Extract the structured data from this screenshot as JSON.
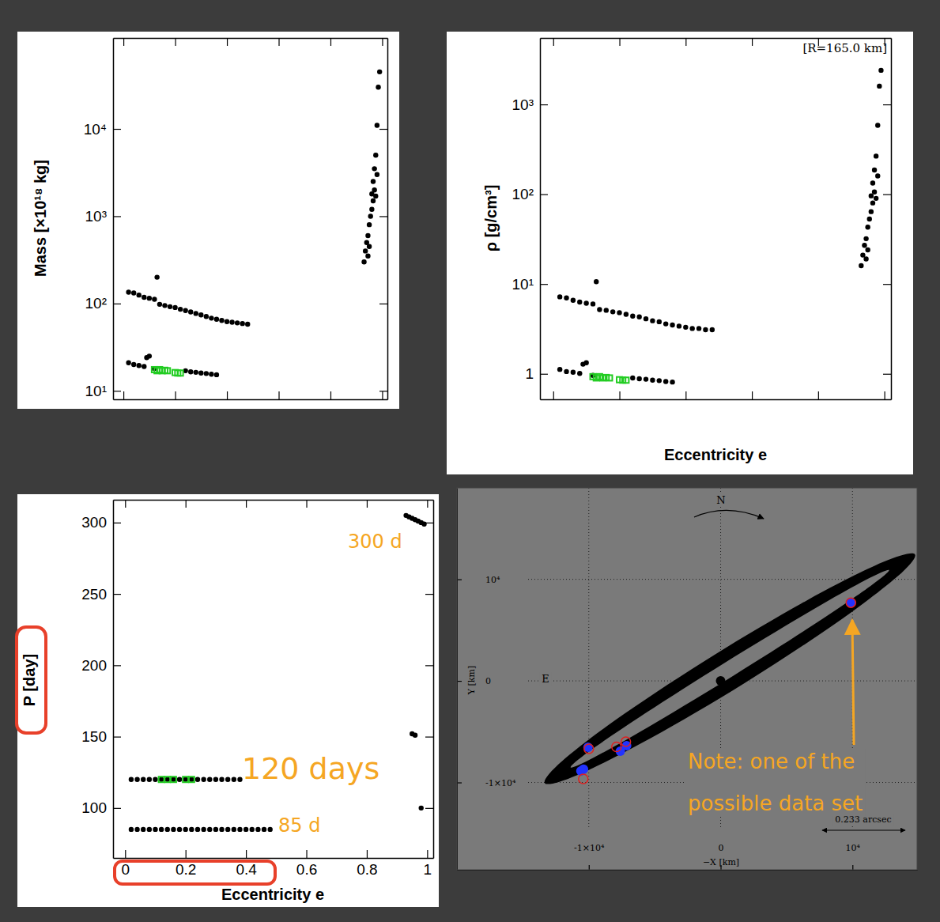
{
  "chart_data": [
    {
      "type": "scatter",
      "ylabel": "Mass [×10¹⁸ kg]",
      "log": "y",
      "tick_labels": "y",
      "xlim": [
        -0.04,
        1.02
      ],
      "xticks": [
        0,
        0.2,
        0.4,
        0.6,
        0.8,
        1
      ],
      "ylim": [
        8,
        110000
      ],
      "yticks": [
        {
          "value": 10,
          "label": "10¹"
        },
        {
          "value": 100,
          "label": "10²"
        },
        {
          "value": 1000,
          "label": "10³"
        },
        {
          "value": 10000,
          "label": "10⁴"
        }
      ],
      "series": [
        {
          "color": "#000000",
          "marker": "circle",
          "x": [
            0.02,
            0.04,
            0.06,
            0.08,
            0.1,
            0.12,
            0.13,
            0.14,
            0.16,
            0.18,
            0.2,
            0.22,
            0.24,
            0.26,
            0.28,
            0.3,
            0.32,
            0.34,
            0.36,
            0.38,
            0.4,
            0.42,
            0.44,
            0.46,
            0.48,
            0.02,
            0.04,
            0.06,
            0.08,
            0.09,
            0.1,
            0.12,
            0.24,
            0.26,
            0.28,
            0.3,
            0.32,
            0.34,
            0.36,
            0.93,
            0.935,
            0.94,
            0.945,
            0.945,
            0.95,
            0.95,
            0.955,
            0.96,
            0.96,
            0.965,
            0.965,
            0.97,
            0.97,
            0.975,
            0.975,
            0.98,
            0.98,
            0.985,
            0.99
          ],
          "values": [
            135,
            132,
            125,
            118,
            115,
            112,
            200,
            98,
            95,
            92,
            90,
            86,
            83,
            80,
            77,
            74,
            71,
            68,
            66,
            64,
            62,
            61,
            60,
            59,
            58,
            21,
            20,
            19.5,
            19,
            24,
            25,
            18,
            17,
            16.5,
            16.3,
            16,
            15.8,
            15.5,
            15.3,
            300,
            400,
            500,
            600,
            350,
            450,
            800,
            1000,
            1200,
            1800,
            1500,
            2500,
            2000,
            3500,
            1700,
            5000,
            3000,
            11000,
            30000,
            45000
          ]
        },
        {
          "color": "#22cc22",
          "marker": "square",
          "x": [
            0.12,
            0.13,
            0.14,
            0.15,
            0.16,
            0.17,
            0.2,
            0.21,
            0.22
          ],
          "values": [
            17.5,
            17,
            17.5,
            17,
            17.2,
            17,
            16.2,
            16,
            16
          ]
        }
      ]
    },
    {
      "type": "scatter",
      "ylabel": "ρ [g/cm³]",
      "xlabel": "Eccentricity e",
      "log": "y",
      "tick_labels": "y",
      "annotations": [
        "[R=165.0 km]"
      ],
      "xlim": [
        -0.04,
        1.02
      ],
      "xticks": [
        0,
        0.2,
        0.4,
        0.6,
        0.8,
        1
      ],
      "ylim": [
        0.52,
        5500
      ],
      "yticks": [
        1,
        {
          "value": 10,
          "label": "10¹"
        },
        {
          "value": 100,
          "label": "10²"
        },
        {
          "value": 1000,
          "label": "10³"
        }
      ],
      "series": [
        {
          "color": "#000000",
          "marker": "circle",
          "x": [
            0.02,
            0.04,
            0.06,
            0.08,
            0.1,
            0.12,
            0.13,
            0.14,
            0.16,
            0.18,
            0.2,
            0.22,
            0.24,
            0.26,
            0.28,
            0.3,
            0.32,
            0.34,
            0.36,
            0.38,
            0.4,
            0.42,
            0.44,
            0.46,
            0.48,
            0.02,
            0.04,
            0.06,
            0.08,
            0.09,
            0.1,
            0.12,
            0.24,
            0.26,
            0.28,
            0.3,
            0.32,
            0.34,
            0.36,
            0.93,
            0.935,
            0.94,
            0.945,
            0.945,
            0.95,
            0.95,
            0.955,
            0.96,
            0.96,
            0.965,
            0.965,
            0.97,
            0.97,
            0.975,
            0.975,
            0.98,
            0.98,
            0.985,
            0.99
          ],
          "values": [
            7.2,
            7.0,
            6.6,
            6.3,
            6.1,
            6.0,
            10.6,
            5.2,
            5.1,
            4.9,
            4.8,
            4.6,
            4.4,
            4.3,
            4.1,
            3.9,
            3.8,
            3.6,
            3.5,
            3.4,
            3.3,
            3.2,
            3.2,
            3.1,
            3.1,
            1.12,
            1.06,
            1.04,
            1.01,
            1.28,
            1.33,
            0.96,
            0.9,
            0.88,
            0.87,
            0.85,
            0.84,
            0.82,
            0.81,
            16,
            21,
            27,
            32,
            19,
            24,
            43,
            53,
            64,
            96,
            80,
            133,
            106,
            186,
            90,
            266,
            160,
            585,
            1600,
            2400
          ]
        },
        {
          "color": "#22cc22",
          "marker": "square",
          "x": [
            0.12,
            0.13,
            0.14,
            0.15,
            0.16,
            0.17,
            0.2,
            0.21,
            0.22
          ],
          "values": [
            0.93,
            0.9,
            0.93,
            0.9,
            0.91,
            0.9,
            0.86,
            0.85,
            0.85
          ]
        }
      ]
    },
    {
      "type": "scatter",
      "ylabel": "P [day]",
      "xlabel": "Eccentricity e",
      "annotations": [
        "300 d",
        "120 days",
        "85 d"
      ],
      "xlim": [
        -0.04,
        1.02
      ],
      "xticks": [
        0,
        0.2,
        0.4,
        0.6,
        0.8,
        1
      ],
      "ylim": [
        65,
        316
      ],
      "yticks": [
        100,
        150,
        200,
        250,
        300
      ],
      "series": [
        {
          "color": "#000000",
          "marker": "circle",
          "x": [
            0.02,
            0.04,
            0.06,
            0.08,
            0.1,
            0.12,
            0.14,
            0.16,
            0.18,
            0.2,
            0.22,
            0.24,
            0.26,
            0.28,
            0.3,
            0.32,
            0.34,
            0.36,
            0.38,
            0.02,
            0.04,
            0.06,
            0.08,
            0.1,
            0.12,
            0.14,
            0.16,
            0.18,
            0.2,
            0.22,
            0.24,
            0.26,
            0.28,
            0.3,
            0.32,
            0.34,
            0.36,
            0.38,
            0.4,
            0.42,
            0.44,
            0.46,
            0.48,
            0.93,
            0.94,
            0.95,
            0.96,
            0.97,
            0.98,
            0.99,
            0.95,
            0.96,
            0.98
          ],
          "values": [
            120,
            120,
            120,
            120,
            120,
            120,
            120,
            120,
            120,
            120,
            120,
            120,
            120,
            120,
            120,
            120,
            120,
            120,
            120,
            85,
            85,
            85,
            85,
            85,
            85,
            85,
            85,
            85,
            85,
            85,
            85,
            85,
            85,
            85,
            85,
            85,
            85,
            85,
            85,
            85,
            85,
            85,
            85,
            305,
            304,
            303,
            302,
            301,
            300,
            299,
            152,
            151,
            100
          ]
        },
        {
          "color": "#22cc22",
          "marker": "square",
          "x": [
            0.12,
            0.14,
            0.16,
            0.2,
            0.22
          ],
          "values": [
            120,
            120,
            120,
            120,
            120
          ]
        }
      ]
    },
    {
      "type": "scatter",
      "xlabel": "−X [km]",
      "ylabel": "Y [km]",
      "grid": true,
      "annotations": [
        "N",
        "E",
        "0.233 arcsec",
        "Note: one of the possible data set"
      ],
      "xlim": [
        -20000,
        14900
      ],
      "xticks": [
        {
          "value": -10000,
          "label": "-1×10⁴"
        },
        0,
        {
          "value": 10000,
          "label": "10⁴"
        }
      ],
      "ylim": [
        -18600,
        19000
      ],
      "yticks": [
        {
          "value": -10000,
          "label": "-1×10⁴"
        },
        0,
        {
          "value": 10000,
          "label": "10⁴"
        }
      ],
      "series": [
        {
          "type": "area",
          "color": "#000000",
          "x": [
            14722,
            12279,
            6733,
            -429,
            -7289,
            -12007,
            -13322,
            -10879,
            -5333,
            1829,
            8689,
            13407
          ],
          "values": [
            12486,
            11675,
            8057,
            2602,
            -3229,
            -7873,
            -10086,
            -9275,
            -5657,
            -202,
            5629,
            10273
          ]
        },
        {
          "type": "area",
          "color": "#7a7a7a",
          "x": [
            12775,
            10937,
            6358,
            261,
            -5718,
            -9977,
            -11375,
            -9537,
            -4958,
            1139,
            7118,
            11377
          ],
          "values": [
            10919,
            9890,
            6532,
            1745,
            -3188,
            -6944,
            -8519,
            -7490,
            -4132,
            655,
            5588,
            9344
          ]
        },
        {
          "color": "#000000",
          "marker": "circle",
          "x": [
            0
          ],
          "values": [
            0
          ]
        },
        {
          "color": "#2233ff",
          "marker": "circle",
          "x": [
            -10060,
            -10600,
            -10400,
            -7610,
            -7130,
            9880
          ],
          "values": [
            -6540,
            -8870,
            -8700,
            -6920,
            -6380,
            7700
          ]
        },
        {
          "color": "#e02020",
          "marker": "circle-open",
          "x": [
            -10420,
            -10000,
            -7190,
            -7900,
            9880
          ],
          "values": [
            -9650,
            -6690,
            -5990,
            -6500,
            7700
          ]
        }
      ]
    }
  ]
}
